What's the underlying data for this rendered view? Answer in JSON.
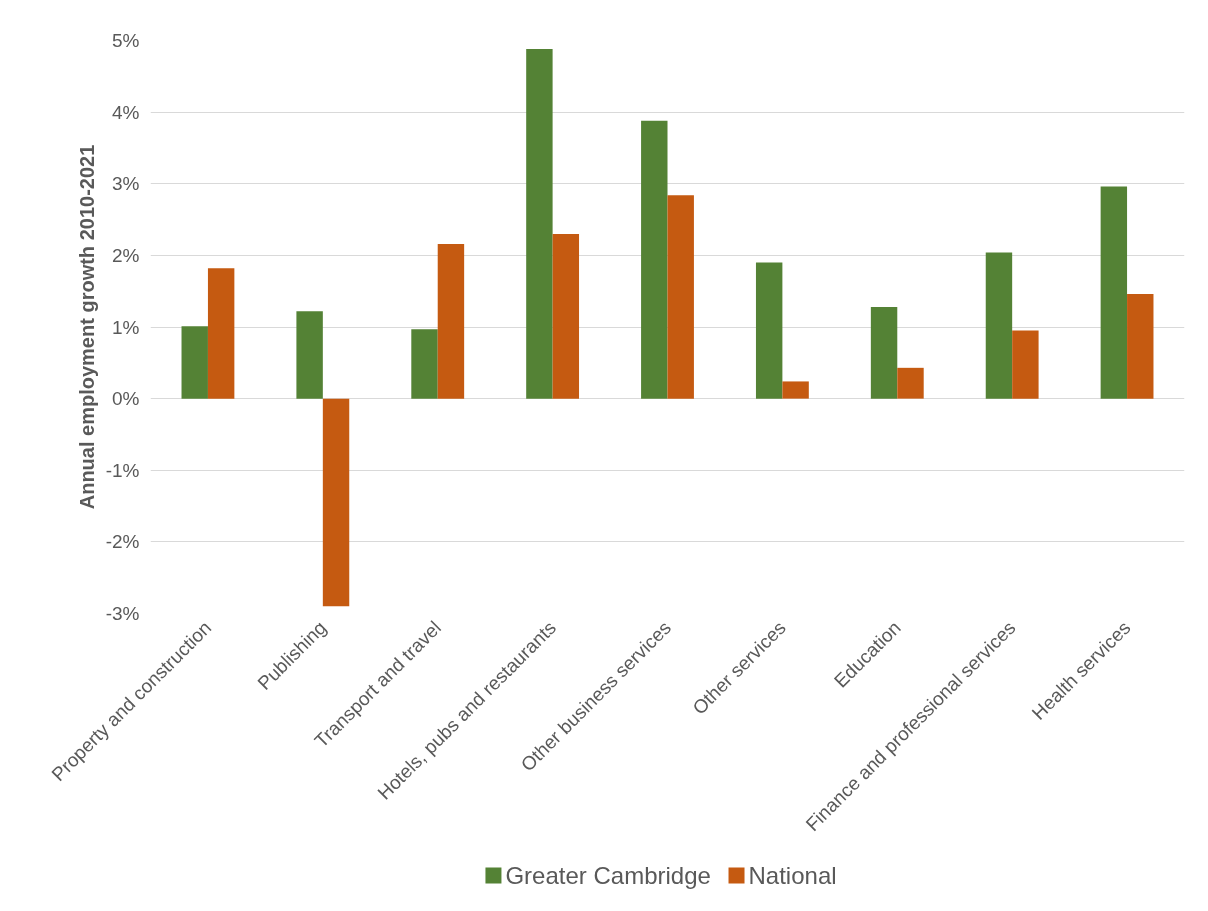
{
  "chart_data": {
    "type": "bar",
    "ylabel": "Annual employment growth 2010-2021",
    "categories": [
      "Property and construction",
      "Publishing",
      "Transport and travel",
      "Hotels, pubs and restaurants",
      "Other business services",
      "Other services",
      "Education",
      "Finance and professional services",
      "Health services"
    ],
    "series": [
      {
        "name": "Greater Cambridge",
        "color": "#548235",
        "values": [
          1.01,
          1.22,
          0.97,
          4.88,
          3.88,
          1.9,
          1.28,
          2.04,
          2.96
        ]
      },
      {
        "name": "National",
        "color": "#c55a11",
        "values": [
          1.82,
          -2.9,
          2.16,
          2.3,
          2.84,
          0.24,
          0.43,
          0.95,
          1.46
        ]
      }
    ],
    "ylim": [
      -3,
      5
    ],
    "yticks": [
      {
        "value": -3,
        "label": "-3%"
      },
      {
        "value": -2,
        "label": "-2%"
      },
      {
        "value": -1,
        "label": "-1%"
      },
      {
        "value": 0,
        "label": "0%"
      },
      {
        "value": 1,
        "label": "1%"
      },
      {
        "value": 2,
        "label": "2%"
      },
      {
        "value": 3,
        "label": "3%"
      },
      {
        "value": 4,
        "label": "4%"
      },
      {
        "value": 5,
        "label": "5%"
      }
    ],
    "grid": "y",
    "legend": "bottom"
  }
}
